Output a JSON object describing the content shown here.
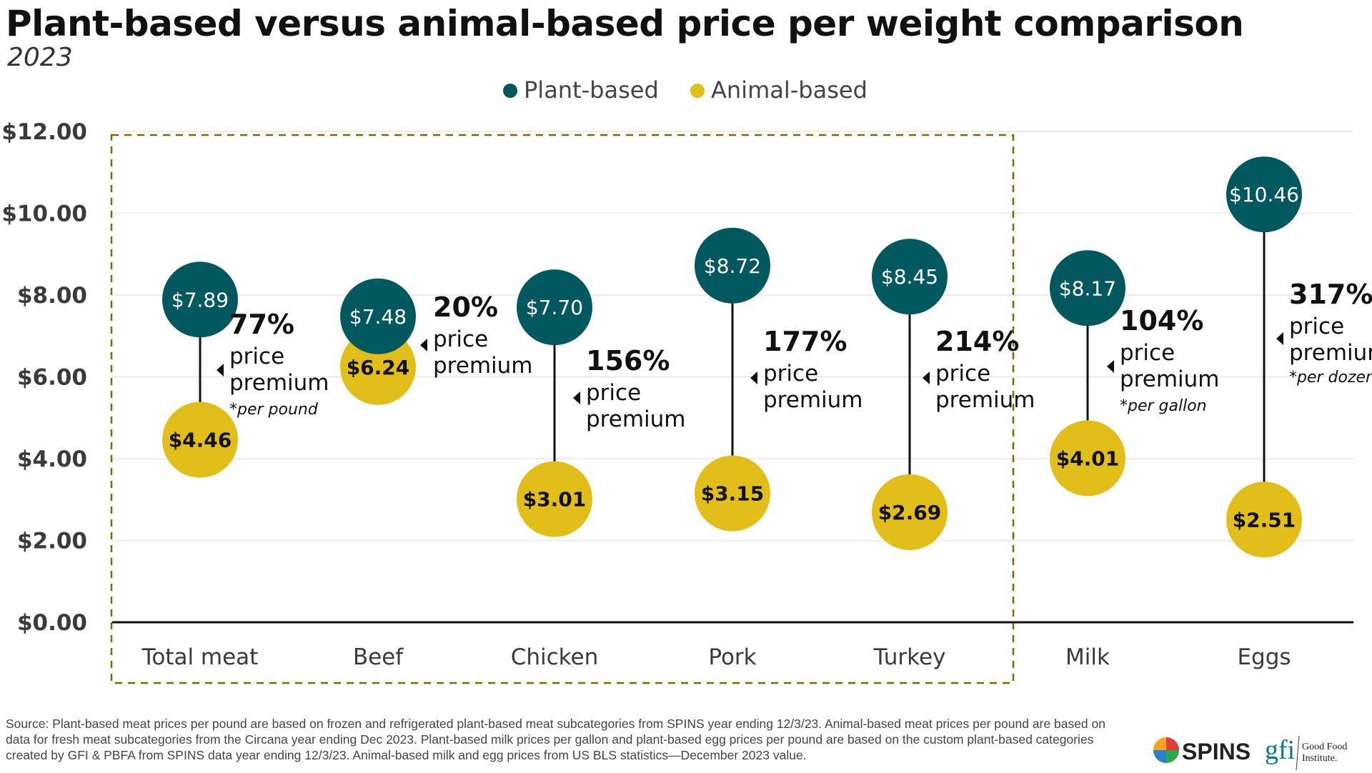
{
  "title": "Plant-based versus animal-based price per weight comparison",
  "subtitle": "2023",
  "colors": {
    "plant": "#02585f",
    "animal": "#e2be1b",
    "box": "#7a6a00",
    "axis": "#111111",
    "grid": "#e6e6e6"
  },
  "chart_data": {
    "type": "dumbbell",
    "ylim": [
      0,
      12
    ],
    "yticks": [
      "$0.00",
      "$2.00",
      "$4.00",
      "$6.00",
      "$8.00",
      "$10.00",
      "$12.00"
    ],
    "ytick_values": [
      0,
      2,
      4,
      6,
      8,
      10,
      12
    ],
    "grid": true,
    "legend": {
      "position": "top-center",
      "entries": [
        "Plant-based",
        "Animal-based"
      ]
    },
    "categories": [
      "Total meat",
      "Beef",
      "Chicken",
      "Pork",
      "Turkey",
      "Milk",
      "Eggs"
    ],
    "series": [
      {
        "name": "Plant-based",
        "values": [
          7.89,
          7.48,
          7.7,
          8.72,
          8.45,
          8.17,
          10.46
        ],
        "labels": [
          "$7.89",
          "$7.48",
          "$7.70",
          "$8.72",
          "$8.45",
          "$8.17",
          "$10.46"
        ]
      },
      {
        "name": "Animal-based",
        "values": [
          4.46,
          6.24,
          3.01,
          3.15,
          2.69,
          4.01,
          2.51
        ],
        "labels": [
          "$4.46",
          "$6.24",
          "$3.01",
          "$3.15",
          "$2.69",
          "$4.01",
          "$2.51"
        ]
      }
    ],
    "annotations": [
      {
        "percent": "77%",
        "text1": "price",
        "text2": "premium",
        "note": "*per pound"
      },
      {
        "percent": "20%",
        "text1": "price",
        "text2": "premium",
        "note": ""
      },
      {
        "percent": "156%",
        "text1": "price",
        "text2": "premium",
        "note": ""
      },
      {
        "percent": "177%",
        "text1": "price",
        "text2": "premium",
        "note": ""
      },
      {
        "percent": "214%",
        "text1": "price",
        "text2": "premium",
        "note": ""
      },
      {
        "percent": "104%",
        "text1": "price",
        "text2": "premium",
        "note": "*per gallon"
      },
      {
        "percent": "317%",
        "text1": "price",
        "text2": "premium",
        "note": "*per dozen"
      }
    ],
    "highlight_box": "Total meat – Turkey (dashed outline)"
  },
  "source": "Source: Plant-based meat prices per pound are based on frozen and refrigerated plant-based meat subcategories from SPINS year ending 12/3/23. Animal-based meat prices per pound are based on data for fresh meat subcategories from the Circana year ending Dec 2023. Plant-based milk prices per gallon and plant-based egg prices per pound are based on the custom plant-based categories created by GFI & PBFA from SPINS data year ending 12/3/23. Animal-based milk and egg prices from US BLS statistics—December 2023 value.",
  "logos": {
    "spins": "SPINS",
    "gfi": "gfi",
    "gfi_name_1": "Good Food",
    "gfi_name_2": "Institute."
  }
}
